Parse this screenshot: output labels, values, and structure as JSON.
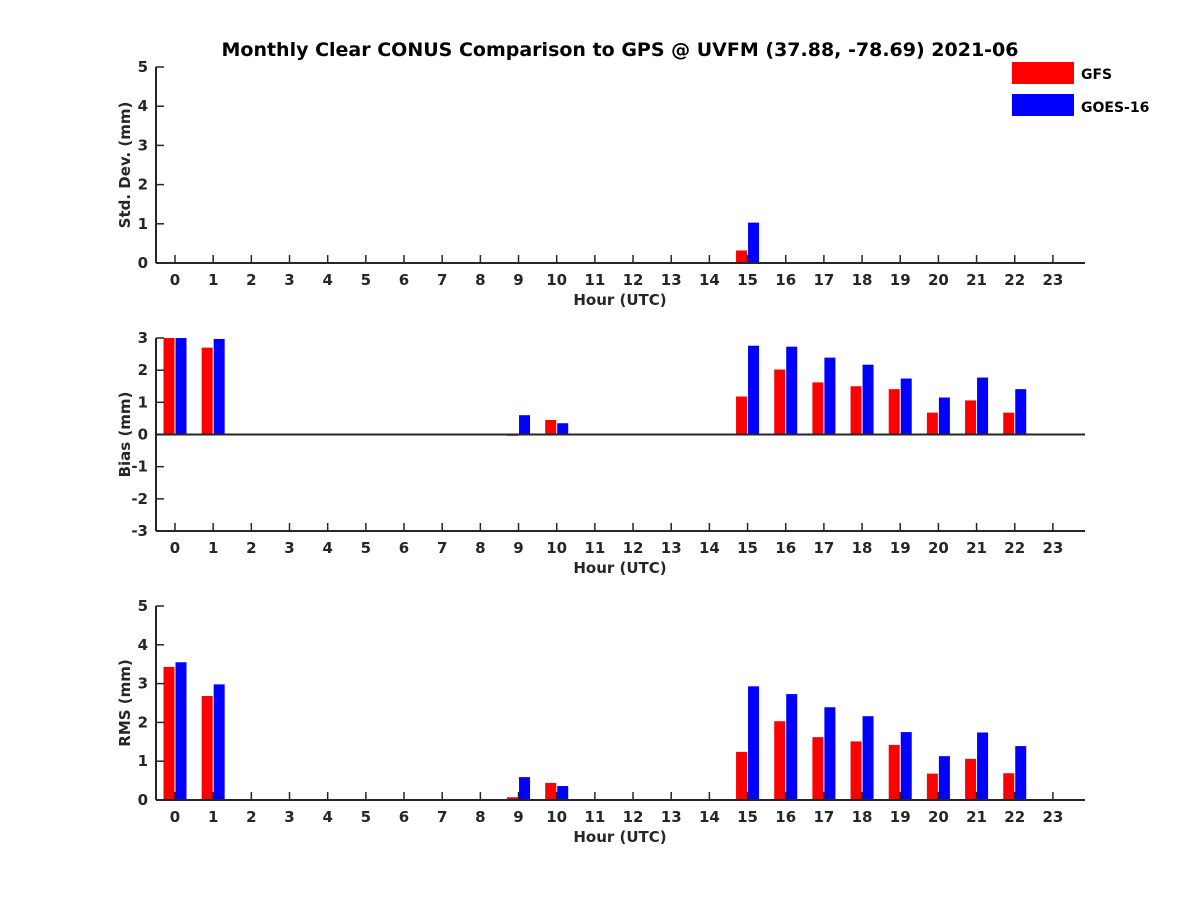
{
  "title": "Monthly Clear CONUS Comparison to GPS @ UVFM (37.88, -78.69) 2021-06",
  "colors": {
    "GFS": "#ff0000",
    "GOES-16": "#0000ff",
    "axis": "#262626"
  },
  "legend": {
    "position": "top-right",
    "entries": [
      "GFS",
      "GOES-16"
    ]
  },
  "chart_data": [
    {
      "type": "bar",
      "xlabel": "Hour (UTC)",
      "ylabel": "Std. Dev. (mm)",
      "ylim": [
        0,
        5
      ],
      "yticks": [
        0,
        1,
        2,
        3,
        4,
        5
      ],
      "categories": [
        "0",
        "1",
        "2",
        "3",
        "4",
        "5",
        "6",
        "7",
        "8",
        "9",
        "10",
        "11",
        "12",
        "13",
        "14",
        "15",
        "16",
        "17",
        "18",
        "19",
        "20",
        "21",
        "22",
        "23"
      ],
      "series": [
        {
          "name": "GFS",
          "values": [
            0,
            0,
            0,
            0,
            0,
            0,
            0,
            0,
            0,
            0,
            0,
            0,
            0,
            0,
            0,
            0.32,
            0,
            0,
            0,
            0,
            0,
            0,
            0,
            0
          ]
        },
        {
          "name": "GOES-16",
          "values": [
            0,
            0,
            0,
            0,
            0,
            0,
            0,
            0,
            0,
            0,
            0,
            0,
            0,
            0,
            0,
            1.03,
            0,
            0,
            0,
            0,
            0,
            0,
            0,
            0
          ]
        }
      ]
    },
    {
      "type": "bar",
      "xlabel": "Hour (UTC)",
      "ylabel": "Bias (mm)",
      "ylim": [
        -3,
        3
      ],
      "yticks": [
        -3,
        -2,
        -1,
        0,
        1,
        2,
        3
      ],
      "categories": [
        "0",
        "1",
        "2",
        "3",
        "4",
        "5",
        "6",
        "7",
        "8",
        "9",
        "10",
        "11",
        "12",
        "13",
        "14",
        "15",
        "16",
        "17",
        "18",
        "19",
        "20",
        "21",
        "22",
        "23"
      ],
      "series": [
        {
          "name": "GFS",
          "values": [
            3.0,
            2.7,
            0,
            0,
            0,
            0,
            0,
            0,
            0,
            -0.04,
            0.45,
            0,
            0,
            0,
            0,
            1.18,
            2.02,
            1.62,
            1.5,
            1.41,
            0.68,
            1.06,
            0.68,
            0
          ]
        },
        {
          "name": "GOES-16",
          "values": [
            3.0,
            2.97,
            0,
            0,
            0,
            0,
            0,
            0,
            0,
            0.6,
            0.35,
            0,
            0,
            0,
            0,
            2.76,
            2.73,
            2.39,
            2.17,
            1.74,
            1.15,
            1.77,
            1.41,
            0
          ]
        }
      ]
    },
    {
      "type": "bar",
      "xlabel": "Hour (UTC)",
      "ylabel": "RMS (mm)",
      "ylim": [
        0,
        5
      ],
      "yticks": [
        0,
        1,
        2,
        3,
        4,
        5
      ],
      "categories": [
        "0",
        "1",
        "2",
        "3",
        "4",
        "5",
        "6",
        "7",
        "8",
        "9",
        "10",
        "11",
        "12",
        "13",
        "14",
        "15",
        "16",
        "17",
        "18",
        "19",
        "20",
        "21",
        "22",
        "23"
      ],
      "series": [
        {
          "name": "GFS",
          "values": [
            3.43,
            2.68,
            0,
            0,
            0,
            0,
            0,
            0,
            0,
            0.07,
            0.44,
            0,
            0,
            0,
            0,
            1.24,
            2.03,
            1.62,
            1.51,
            1.42,
            0.68,
            1.06,
            0.69,
            0
          ]
        },
        {
          "name": "GOES-16",
          "values": [
            3.55,
            2.98,
            0,
            0,
            0,
            0,
            0,
            0,
            0,
            0.59,
            0.36,
            0,
            0,
            0,
            0,
            2.93,
            2.73,
            2.39,
            2.16,
            1.75,
            1.13,
            1.74,
            1.39,
            0
          ]
        }
      ]
    }
  ]
}
